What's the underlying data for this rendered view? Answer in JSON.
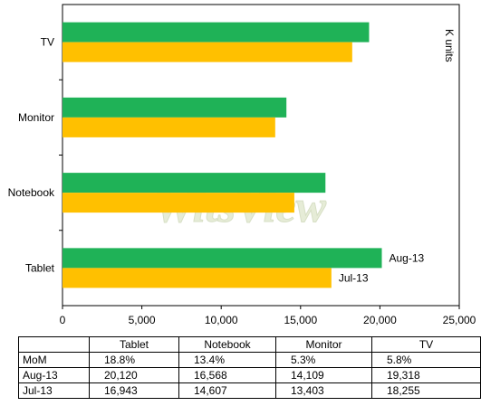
{
  "chart_data": {
    "type": "bar",
    "orientation": "horizontal",
    "categories": [
      "Tablet",
      "Notebook",
      "Monitor",
      "TV"
    ],
    "series": [
      {
        "name": "Aug-13",
        "values": [
          20120,
          16568,
          14109,
          19318
        ],
        "color": "#1fb257"
      },
      {
        "name": "Jul-13",
        "values": [
          16943,
          14607,
          13403,
          18255
        ],
        "color": "#ffc000"
      }
    ],
    "xlim": [
      0,
      25000
    ],
    "xticks": [
      "0",
      "5,000",
      "10,000",
      "15,000",
      "20,000",
      "25,000"
    ],
    "unit_label": "K units",
    "grid": false,
    "watermark": "WitsView"
  },
  "table": {
    "columns": [
      "Tablet",
      "Notebook",
      "Monitor",
      "TV"
    ],
    "rows": [
      {
        "label": "MoM",
        "values": [
          "18.8%",
          "13.4%",
          "5.3%",
          "5.8%"
        ]
      },
      {
        "label": "Aug-13",
        "values": [
          "20,120",
          "16,568",
          "14,109",
          "19,318"
        ]
      },
      {
        "label": "Jul-13",
        "values": [
          "16,943",
          "14,607",
          "13,403",
          "18,255"
        ]
      }
    ]
  }
}
